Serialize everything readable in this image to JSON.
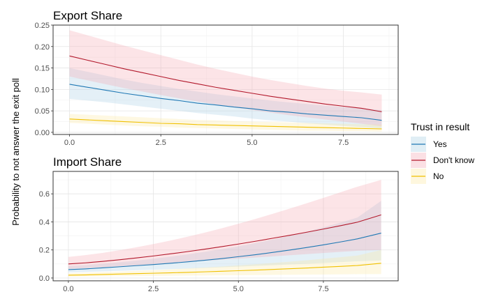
{
  "ylabel": "Probability to not answer the exit poll",
  "legend": {
    "title": "Trust in result",
    "position": "right",
    "entries": [
      {
        "label": "Yes",
        "color": "#1f78b4",
        "fill": "#a6cee3"
      },
      {
        "label": "Don't know",
        "color": "#b2182b",
        "fill": "#f4a6b1"
      },
      {
        "label": "No",
        "color": "#f0c000",
        "fill": "#fbe8a0"
      }
    ]
  },
  "chart_data": [
    {
      "type": "line",
      "title": "Export Share",
      "xlim": [
        -0.45,
        9.0
      ],
      "ylim": [
        -0.005,
        0.25
      ],
      "xticks": [
        0,
        2.5,
        5,
        7.5
      ],
      "xtick_labels": [
        "0.0",
        "2.5",
        "5.0",
        "7.5"
      ],
      "yticks": [
        0,
        0.05,
        0.1,
        0.15,
        0.2,
        0.25
      ],
      "ytick_labels": [
        "0.00",
        "0.05",
        "0.10",
        "0.15",
        "0.20",
        "0.25"
      ],
      "grid": true,
      "x": [
        0,
        0.5,
        1,
        1.5,
        2,
        2.5,
        3,
        3.5,
        4,
        4.5,
        5,
        5.5,
        6,
        6.5,
        7,
        7.5,
        8,
        8.55
      ],
      "series": [
        {
          "name": "Yes",
          "values": [
            0.112,
            0.105,
            0.098,
            0.091,
            0.085,
            0.079,
            0.074,
            0.068,
            0.064,
            0.059,
            0.055,
            0.05,
            0.047,
            0.043,
            0.04,
            0.037,
            0.034,
            0.028
          ],
          "lower": [
            0.078,
            0.074,
            0.07,
            0.065,
            0.06,
            0.055,
            0.05,
            0.045,
            0.041,
            0.037,
            0.032,
            0.028,
            0.025,
            0.021,
            0.018,
            0.015,
            0.012,
            0.009
          ],
          "upper": [
            0.15,
            0.141,
            0.132,
            0.123,
            0.115,
            0.108,
            0.101,
            0.095,
            0.089,
            0.084,
            0.079,
            0.074,
            0.07,
            0.066,
            0.062,
            0.059,
            0.056,
            0.052
          ]
        },
        {
          "name": "Don't know",
          "values": [
            0.178,
            0.168,
            0.158,
            0.148,
            0.139,
            0.13,
            0.121,
            0.113,
            0.105,
            0.098,
            0.091,
            0.084,
            0.078,
            0.072,
            0.066,
            0.061,
            0.056,
            0.048
          ],
          "lower": [
            0.13,
            0.121,
            0.112,
            0.103,
            0.095,
            0.087,
            0.079,
            0.072,
            0.065,
            0.058,
            0.052,
            0.046,
            0.04,
            0.035,
            0.03,
            0.025,
            0.02,
            0.014
          ],
          "upper": [
            0.238,
            0.226,
            0.214,
            0.202,
            0.191,
            0.18,
            0.169,
            0.158,
            0.148,
            0.139,
            0.13,
            0.122,
            0.115,
            0.108,
            0.102,
            0.097,
            0.093,
            0.088
          ]
        },
        {
          "name": "No",
          "values": [
            0.031,
            0.029,
            0.027,
            0.025,
            0.023,
            0.021,
            0.02,
            0.018,
            0.017,
            0.016,
            0.015,
            0.014,
            0.013,
            0.012,
            0.011,
            0.01,
            0.009,
            0.008
          ],
          "lower": [
            0.022,
            0.02,
            0.018,
            0.016,
            0.014,
            0.013,
            0.011,
            0.01,
            0.009,
            0.008,
            0.007,
            0.006,
            0.005,
            0.004,
            0.004,
            0.003,
            0.003,
            0.002
          ],
          "upper": [
            0.043,
            0.041,
            0.039,
            0.037,
            0.035,
            0.033,
            0.031,
            0.029,
            0.028,
            0.026,
            0.025,
            0.024,
            0.023,
            0.022,
            0.021,
            0.02,
            0.019,
            0.018
          ]
        }
      ]
    },
    {
      "type": "line",
      "title": "Import Share",
      "xlim": [
        -0.45,
        9.7
      ],
      "ylim": [
        -0.02,
        0.76
      ],
      "xticks": [
        0,
        2.5,
        5,
        7.5
      ],
      "xtick_labels": [
        "0.0",
        "2.5",
        "5.0",
        "7.5"
      ],
      "yticks": [
        0,
        0.2,
        0.4,
        0.6
      ],
      "ytick_labels": [
        "0.0",
        "0.2",
        "0.4",
        "0.6"
      ],
      "grid": true,
      "x": [
        0,
        0.5,
        1,
        1.5,
        2,
        2.5,
        3,
        3.5,
        4,
        4.5,
        5,
        5.5,
        6,
        6.5,
        7,
        7.5,
        8,
        8.5,
        9.2
      ],
      "series": [
        {
          "name": "Yes",
          "values": [
            0.06,
            0.065,
            0.072,
            0.08,
            0.088,
            0.096,
            0.105,
            0.115,
            0.126,
            0.138,
            0.152,
            0.166,
            0.182,
            0.199,
            0.217,
            0.236,
            0.257,
            0.279,
            0.32
          ],
          "lower": [
            0.04,
            0.043,
            0.047,
            0.051,
            0.055,
            0.059,
            0.063,
            0.067,
            0.071,
            0.076,
            0.081,
            0.086,
            0.091,
            0.096,
            0.101,
            0.107,
            0.113,
            0.119,
            0.125
          ],
          "upper": [
            0.085,
            0.092,
            0.101,
            0.112,
            0.124,
            0.137,
            0.152,
            0.168,
            0.186,
            0.205,
            0.226,
            0.249,
            0.274,
            0.301,
            0.33,
            0.361,
            0.395,
            0.431,
            0.55
          ]
        },
        {
          "name": "Don't know",
          "values": [
            0.1,
            0.108,
            0.118,
            0.13,
            0.143,
            0.157,
            0.172,
            0.188,
            0.205,
            0.223,
            0.242,
            0.262,
            0.283,
            0.304,
            0.326,
            0.349,
            0.373,
            0.398,
            0.45
          ],
          "lower": [
            0.065,
            0.07,
            0.076,
            0.083,
            0.09,
            0.098,
            0.106,
            0.114,
            0.122,
            0.13,
            0.138,
            0.146,
            0.154,
            0.162,
            0.17,
            0.178,
            0.186,
            0.194,
            0.2
          ],
          "upper": [
            0.15,
            0.163,
            0.179,
            0.198,
            0.219,
            0.242,
            0.267,
            0.294,
            0.323,
            0.354,
            0.387,
            0.421,
            0.457,
            0.494,
            0.532,
            0.571,
            0.611,
            0.651,
            0.7
          ]
        },
        {
          "name": "No",
          "values": [
            0.02,
            0.022,
            0.025,
            0.028,
            0.031,
            0.034,
            0.037,
            0.04,
            0.044,
            0.048,
            0.052,
            0.056,
            0.061,
            0.066,
            0.071,
            0.077,
            0.083,
            0.089,
            0.105
          ],
          "lower": [
            0.01,
            0.011,
            0.012,
            0.013,
            0.014,
            0.015,
            0.016,
            0.017,
            0.018,
            0.019,
            0.02,
            0.021,
            0.022,
            0.023,
            0.024,
            0.025,
            0.026,
            0.027,
            0.028
          ],
          "upper": [
            0.035,
            0.038,
            0.042,
            0.046,
            0.051,
            0.056,
            0.062,
            0.068,
            0.075,
            0.082,
            0.09,
            0.098,
            0.107,
            0.116,
            0.126,
            0.137,
            0.148,
            0.16,
            0.2
          ]
        }
      ]
    }
  ]
}
